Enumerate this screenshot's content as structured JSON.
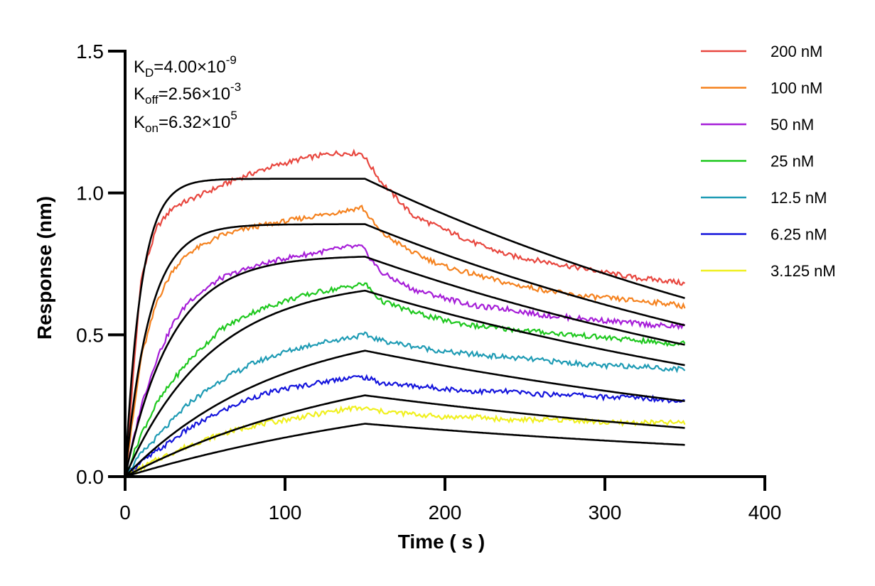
{
  "chart_data": {
    "type": "line",
    "title": "",
    "xlabel": "Time ( s )",
    "ylabel": "Response (nm)",
    "xlim": [
      0,
      400
    ],
    "ylim": [
      0,
      1.5
    ],
    "x_ticks": [
      0,
      100,
      200,
      300,
      400
    ],
    "x_tick_labels": [
      "0",
      "100",
      "200",
      "300",
      "400"
    ],
    "y_ticks": [
      0,
      0.5,
      1.0,
      1.5
    ],
    "y_tick_labels": [
      "0.0",
      "0.5",
      "1.0",
      "1.5"
    ],
    "grid": false,
    "legend_position": "top-right",
    "association_end_s": 150,
    "end_time_s": 350,
    "annotations": {
      "kd": {
        "base": "K",
        "sub": "D",
        "value": "=4.00×10",
        "exp": "-9"
      },
      "koff": {
        "base": "K",
        "sub": "off",
        "value": "=2.56×10",
        "exp": "-3"
      },
      "kon": {
        "base": "K",
        "sub": "on",
        "value": "=6.32×10",
        "exp": "5"
      }
    },
    "series": [
      {
        "name": "200 nM",
        "color": "#e8473f",
        "conc_nM": 200,
        "fit_plateau": 1.05,
        "fit_kobs": 0.1,
        "fit_kdiss": 0.00256,
        "points": [
          [
            0,
            0
          ],
          [
            10,
            0.7
          ],
          [
            20,
            0.88
          ],
          [
            30,
            0.95
          ],
          [
            50,
            1.0
          ],
          [
            70,
            1.05
          ],
          [
            90,
            1.09
          ],
          [
            110,
            1.12
          ],
          [
            130,
            1.14
          ],
          [
            148,
            1.14
          ],
          [
            160,
            1.04
          ],
          [
            180,
            0.92
          ],
          [
            200,
            0.87
          ],
          [
            220,
            0.82
          ],
          [
            240,
            0.78
          ],
          [
            260,
            0.76
          ],
          [
            280,
            0.74
          ],
          [
            300,
            0.72
          ],
          [
            320,
            0.7
          ],
          [
            340,
            0.69
          ],
          [
            350,
            0.68
          ]
        ]
      },
      {
        "name": "100 nM",
        "color": "#f5821f",
        "conc_nM": 100,
        "fit_plateau": 0.89,
        "fit_kobs": 0.0657,
        "fit_kdiss": 0.00256,
        "points": [
          [
            0,
            0
          ],
          [
            10,
            0.42
          ],
          [
            20,
            0.62
          ],
          [
            30,
            0.73
          ],
          [
            40,
            0.79
          ],
          [
            60,
            0.85
          ],
          [
            80,
            0.88
          ],
          [
            100,
            0.9
          ],
          [
            120,
            0.92
          ],
          [
            140,
            0.94
          ],
          [
            148,
            0.95
          ],
          [
            160,
            0.86
          ],
          [
            180,
            0.79
          ],
          [
            200,
            0.74
          ],
          [
            220,
            0.71
          ],
          [
            240,
            0.68
          ],
          [
            260,
            0.66
          ],
          [
            280,
            0.64
          ],
          [
            300,
            0.63
          ],
          [
            320,
            0.62
          ],
          [
            340,
            0.61
          ],
          [
            350,
            0.6
          ]
        ]
      },
      {
        "name": "50 nM",
        "color": "#a61ed8",
        "conc_nM": 50,
        "fit_plateau": 0.78,
        "fit_kobs": 0.0342,
        "fit_kdiss": 0.00256,
        "points": [
          [
            0,
            0
          ],
          [
            10,
            0.25
          ],
          [
            20,
            0.42
          ],
          [
            30,
            0.54
          ],
          [
            40,
            0.62
          ],
          [
            60,
            0.7
          ],
          [
            80,
            0.74
          ],
          [
            100,
            0.77
          ],
          [
            120,
            0.79
          ],
          [
            140,
            0.81
          ],
          [
            148,
            0.81
          ],
          [
            160,
            0.72
          ],
          [
            180,
            0.66
          ],
          [
            200,
            0.63
          ],
          [
            220,
            0.6
          ],
          [
            240,
            0.59
          ],
          [
            260,
            0.57
          ],
          [
            280,
            0.56
          ],
          [
            300,
            0.55
          ],
          [
            320,
            0.54
          ],
          [
            340,
            0.53
          ],
          [
            350,
            0.53
          ]
        ]
      },
      {
        "name": "25 nM",
        "color": "#1ec81e",
        "conc_nM": 25,
        "fit_plateau": 0.7,
        "fit_kobs": 0.0184,
        "fit_kdiss": 0.00256,
        "points": [
          [
            0,
            0
          ],
          [
            10,
            0.15
          ],
          [
            20,
            0.26
          ],
          [
            30,
            0.34
          ],
          [
            40,
            0.41
          ],
          [
            60,
            0.52
          ],
          [
            80,
            0.58
          ],
          [
            100,
            0.62
          ],
          [
            120,
            0.65
          ],
          [
            140,
            0.67
          ],
          [
            150,
            0.68
          ],
          [
            160,
            0.62
          ],
          [
            180,
            0.58
          ],
          [
            200,
            0.55
          ],
          [
            220,
            0.53
          ],
          [
            240,
            0.52
          ],
          [
            260,
            0.51
          ],
          [
            280,
            0.5
          ],
          [
            300,
            0.49
          ],
          [
            320,
            0.48
          ],
          [
            340,
            0.47
          ],
          [
            350,
            0.47
          ]
        ]
      },
      {
        "name": "12.5 nM",
        "color": "#1e9bb4",
        "conc_nM": 12.5,
        "fit_plateau": 0.56,
        "fit_kobs": 0.0105,
        "fit_kdiss": 0.00256,
        "points": [
          [
            0,
            0
          ],
          [
            10,
            0.08
          ],
          [
            20,
            0.14
          ],
          [
            40,
            0.26
          ],
          [
            60,
            0.34
          ],
          [
            80,
            0.4
          ],
          [
            100,
            0.44
          ],
          [
            120,
            0.47
          ],
          [
            140,
            0.49
          ],
          [
            150,
            0.5
          ],
          [
            160,
            0.48
          ],
          [
            180,
            0.46
          ],
          [
            200,
            0.44
          ],
          [
            220,
            0.43
          ],
          [
            240,
            0.42
          ],
          [
            260,
            0.41
          ],
          [
            280,
            0.4
          ],
          [
            300,
            0.39
          ],
          [
            320,
            0.39
          ],
          [
            340,
            0.38
          ],
          [
            350,
            0.38
          ]
        ]
      },
      {
        "name": "6.25 nM",
        "color": "#1414dc",
        "conc_nM": 6.25,
        "fit_plateau": 0.46,
        "fit_kobs": 0.0065,
        "fit_kdiss": 0.00256,
        "points": [
          [
            0,
            0
          ],
          [
            10,
            0.05
          ],
          [
            20,
            0.09
          ],
          [
            40,
            0.17
          ],
          [
            60,
            0.23
          ],
          [
            80,
            0.28
          ],
          [
            100,
            0.31
          ],
          [
            120,
            0.33
          ],
          [
            140,
            0.35
          ],
          [
            150,
            0.35
          ],
          [
            160,
            0.33
          ],
          [
            180,
            0.32
          ],
          [
            200,
            0.31
          ],
          [
            220,
            0.3
          ],
          [
            240,
            0.3
          ],
          [
            260,
            0.29
          ],
          [
            280,
            0.29
          ],
          [
            300,
            0.28
          ],
          [
            320,
            0.28
          ],
          [
            340,
            0.27
          ],
          [
            350,
            0.27
          ]
        ]
      },
      {
        "name": "3.125 nM",
        "color": "#f0f01e",
        "conc_nM": 3.125,
        "fit_plateau": 0.38,
        "fit_kobs": 0.0045,
        "fit_kdiss": 0.00256,
        "points": [
          [
            0,
            0
          ],
          [
            10,
            0.03
          ],
          [
            20,
            0.06
          ],
          [
            40,
            0.11
          ],
          [
            60,
            0.15
          ],
          [
            80,
            0.18
          ],
          [
            100,
            0.2
          ],
          [
            120,
            0.22
          ],
          [
            140,
            0.24
          ],
          [
            150,
            0.24
          ],
          [
            160,
            0.23
          ],
          [
            180,
            0.22
          ],
          [
            200,
            0.21
          ],
          [
            220,
            0.21
          ],
          [
            240,
            0.2
          ],
          [
            260,
            0.2
          ],
          [
            280,
            0.2
          ],
          [
            300,
            0.19
          ],
          [
            320,
            0.19
          ],
          [
            340,
            0.19
          ],
          [
            350,
            0.19
          ]
        ]
      }
    ]
  }
}
